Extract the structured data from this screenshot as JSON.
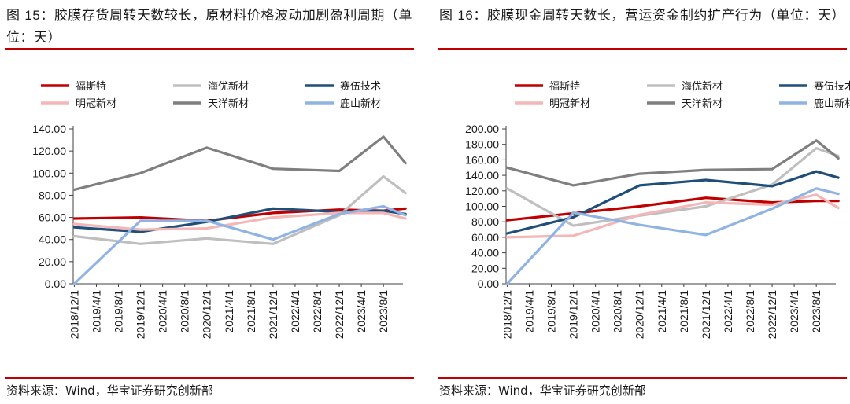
{
  "left": {
    "title_prefix": "图 ",
    "title_num": "15",
    "title_text": "：胶膜存货周转天数较长，原材料价格波动加剧盈利周期（单位：天）",
    "source": "资料来源：Wind，华宝证券研究创新部"
  },
  "right": {
    "title_prefix": "图 ",
    "title_num": "16",
    "title_text": "：胶膜现金周转天数长，营运资金制约扩产行为（单位：天）",
    "source": "资料来源：Wind，华宝证券研究创新部"
  },
  "colors": {
    "rule": "#c00000",
    "series": [
      "#c00000",
      "#bfbfbf",
      "#1f4e79",
      "#f4b6b6",
      "#7f7f7f",
      "#8fb4e3"
    ]
  },
  "chart_data": [
    {
      "type": "line",
      "title": "胶膜存货周转天数（单位：天）",
      "categories": [
        "2018/12/1",
        "2019/4/1",
        "2019/8/1",
        "2019/12/1",
        "2020/4/1",
        "2020/8/1",
        "2020/12/1",
        "2021/4/1",
        "2021/8/1",
        "2021/12/1",
        "2022/4/1",
        "2022/8/1",
        "2022/12/1",
        "2023/4/1",
        "2023/8/1"
      ],
      "ylim": [
        0,
        140
      ],
      "yticks": [
        "0.00",
        "20.00",
        "40.00",
        "60.00",
        "80.00",
        "100.00",
        "120.00",
        "140.00"
      ],
      "legend": [
        "福斯特",
        "海优新材",
        "赛伍技术",
        "明冠新材",
        "天洋新材",
        "鹿山新材"
      ],
      "series": [
        {
          "name": "福斯特",
          "x": [
            0,
            3,
            6,
            9,
            12,
            14,
            15
          ],
          "values": [
            59,
            60,
            57,
            64,
            67,
            66,
            68
          ]
        },
        {
          "name": "海优新材",
          "x": [
            0,
            3,
            6,
            9,
            12,
            14,
            15
          ],
          "values": [
            43,
            36,
            41,
            36,
            62,
            97,
            82
          ]
        },
        {
          "name": "赛伍技术",
          "x": [
            0,
            3,
            6,
            9,
            12,
            14,
            15
          ],
          "values": [
            51,
            47,
            56,
            68,
            65,
            66,
            63
          ]
        },
        {
          "name": "明冠新材",
          "x": [
            0,
            3,
            6,
            9,
            12,
            14,
            15
          ],
          "values": [
            54,
            49,
            50,
            60,
            64,
            64,
            59
          ]
        },
        {
          "name": "天洋新材",
          "x": [
            0,
            3,
            6,
            9,
            12,
            14,
            15
          ],
          "values": [
            85,
            100,
            123,
            104,
            102,
            133,
            109
          ]
        },
        {
          "name": "鹿山新材",
          "x": [
            0,
            3,
            6,
            9,
            12,
            14,
            15
          ],
          "values": [
            0,
            57,
            57,
            40,
            63,
            70,
            62
          ]
        }
      ]
    },
    {
      "type": "line",
      "title": "胶膜现金周转天数（单位：天）",
      "categories": [
        "2018/12/1",
        "2019/4/1",
        "2019/8/1",
        "2019/12/1",
        "2020/4/1",
        "2020/8/1",
        "2020/12/1",
        "2021/4/1",
        "2021/8/1",
        "2021/12/1",
        "2022/4/1",
        "2022/8/1",
        "2022/12/1",
        "2023/4/1",
        "2023/8/1"
      ],
      "ylim": [
        0,
        200
      ],
      "yticks": [
        "0.00",
        "20.00",
        "40.00",
        "60.00",
        "80.00",
        "100.00",
        "120.00",
        "140.00",
        "160.00",
        "180.00",
        "200.00"
      ],
      "legend": [
        "福斯特",
        "海优新材",
        "赛伍技术",
        "明冠新材",
        "天洋新材",
        "鹿山新材"
      ],
      "series": [
        {
          "name": "福斯特",
          "x": [
            0,
            3,
            6,
            9,
            12,
            14,
            15
          ],
          "values": [
            82,
            91,
            100,
            111,
            105,
            107,
            107
          ]
        },
        {
          "name": "海优新材",
          "x": [
            0,
            3,
            6,
            9,
            12,
            14,
            15
          ],
          "values": [
            123,
            75,
            88,
            100,
            128,
            175,
            165
          ]
        },
        {
          "name": "赛伍技术",
          "x": [
            0,
            3,
            6,
            9,
            12,
            14,
            15
          ],
          "values": [
            65,
            86,
            127,
            134,
            126,
            145,
            137
          ]
        },
        {
          "name": "明冠新材",
          "x": [
            0,
            3,
            6,
            9,
            12,
            14,
            15
          ],
          "values": [
            60,
            62,
            89,
            105,
            102,
            115,
            98
          ]
        },
        {
          "name": "天洋新材",
          "x": [
            0,
            3,
            6,
            9,
            12,
            14,
            15
          ],
          "values": [
            150,
            127,
            142,
            147,
            148,
            185,
            162
          ]
        },
        {
          "name": "鹿山新材",
          "x": [
            0,
            3,
            6,
            9,
            12,
            14,
            15
          ],
          "values": [
            0,
            92,
            76,
            63,
            97,
            123,
            116
          ]
        }
      ]
    }
  ]
}
